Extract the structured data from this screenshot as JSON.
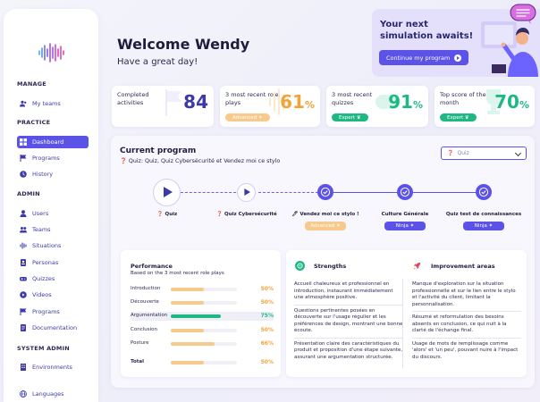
{
  "sidebar": {
    "sections": {
      "manage": "MANAGE",
      "practice": "PRACTICE",
      "admin": "ADMIN",
      "system_admin": "SYSTEM ADMIN"
    },
    "items": {
      "my_teams": "My teams",
      "dashboard": "Dashboard",
      "programs": "Programs",
      "history": "History",
      "users": "Users",
      "teams": "Teams",
      "situations": "Situations",
      "personas": "Personas",
      "quizzes": "Quizzes",
      "videos": "Videos",
      "admin_programs": "Programs",
      "documentation": "Documentation",
      "environments": "Environments",
      "languages": "Languages"
    }
  },
  "header": {
    "title": "Welcome Wendy",
    "subtitle": "Have a great day!"
  },
  "simulation": {
    "title": "Your next simulation awaits!",
    "button": "Continue my program"
  },
  "stats": [
    {
      "label": "Completed activities",
      "value": "84",
      "unit": "",
      "badge": ""
    },
    {
      "label": "3 most recent role plays",
      "value": "61",
      "unit": "%",
      "badge": "Advanced"
    },
    {
      "label": "3 most recent quizzes",
      "value": "91",
      "unit": "%",
      "badge": "Expert"
    },
    {
      "label": "Top score of the month",
      "value": "70",
      "unit": "%",
      "badge": "Expert"
    }
  ],
  "program": {
    "title": "Current program",
    "subtitle": "Quiz: Quiz, Quiz Cybersécurité et Vendez moi ce stylo",
    "select": "Quiz",
    "steps": [
      {
        "label": "Quiz",
        "badge": ""
      },
      {
        "label": "Quiz Cybersécurité",
        "badge": ""
      },
      {
        "label": "Vendez moi ce stylo !",
        "badge": "Advanced"
      },
      {
        "label": "Culture Générale",
        "badge": "Ninja"
      },
      {
        "label": "Quiz test de connaissances",
        "badge": "Ninja"
      }
    ]
  },
  "performance": {
    "title": "Performance",
    "subtitle": "Based on the 3 most recent role plays",
    "rows": [
      {
        "label": "Introduction",
        "value": "50%",
        "fraction": 0.5
      },
      {
        "label": "Découverte",
        "value": "50%",
        "fraction": 0.5
      },
      {
        "label": "Argumentation",
        "value": "75%",
        "fraction": 0.75
      },
      {
        "label": "Conclusion",
        "value": "50%",
        "fraction": 0.5
      },
      {
        "label": "Posture",
        "value": "66%",
        "fraction": 0.66
      }
    ],
    "total_label": "Total",
    "total_value": "50%",
    "total_fraction": 0.5
  },
  "strengths": {
    "title": "Strengths",
    "items": [
      "Accueil chaleureux et professionnel en introduction, instaurant immédiatement une atmosphère positive.",
      "Questions pertinentes posées en découverte sur l'usage régulier et les préférences de design, montrant une bonne écoute.",
      "Présentation claire des caractéristiques du produit et proposition d'une étape suivante, assurant une argumentation structurée."
    ]
  },
  "improvements": {
    "title": "Improvement areas",
    "items": [
      "Manque d'exploration sur la situation professionnelle et sur le lien entre le stylo et l'activité du client, limitant la personnalisation.",
      "Résumé et reformulation des besoins absents en conclusion, ce qui nuit à la clarté de l'échange final.",
      "Usage de mots de remplissage comme 'alors' et 'un peu', pouvant nuire à l'impact du discours."
    ]
  },
  "colors": {
    "primary": "#5b52e8",
    "advanced": "#f7c98b",
    "expert": "#1fb885",
    "ninja": "#5b52e8"
  }
}
